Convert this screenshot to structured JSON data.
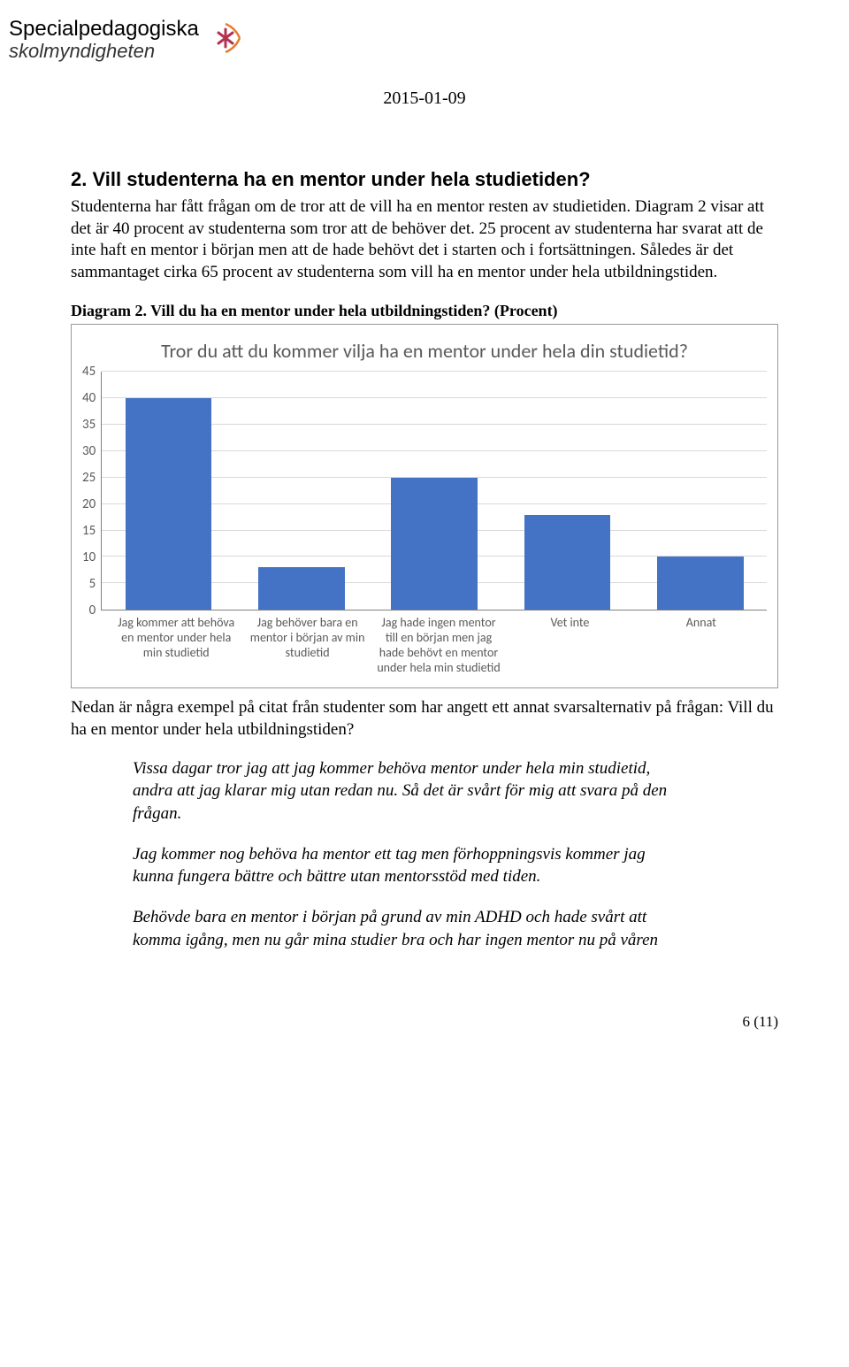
{
  "header": {
    "logo_line1": "Specialpedagogiska",
    "logo_line2": "skolmyndigheten",
    "date": "2015-01-09"
  },
  "section": {
    "number": "2",
    "title": "Vill studenterna ha en mentor under hela studietiden?",
    "body": "Studenterna har fått frågan om de tror att de vill ha en mentor resten av studietiden. Diagram 2 visar att det är 40 procent av studenterna som tror att de behöver det. 25 procent av studenterna har svarat att de inte haft en mentor i början men att de hade behövt det i starten och i fortsättningen. Således är det sammantaget cirka 65 procent av studenterna som vill ha en mentor under hela utbildningstiden."
  },
  "chart": {
    "caption": "Diagram 2. Vill du ha en mentor under hela utbildningstiden? (Procent)",
    "title": "Tror du att du kommer vilja ha en mentor under hela din studietid?",
    "type": "bar",
    "ylim": [
      0,
      45
    ],
    "ytick_step": 5,
    "yticks": [
      45,
      40,
      35,
      30,
      25,
      20,
      15,
      10,
      5,
      0
    ],
    "bar_color": "#4472c4",
    "grid_color": "#d9d9d9",
    "axis_color": "#808080",
    "text_color": "#595959",
    "categories": [
      "Jag kommer att behöva en mentor under hela min studietid",
      "Jag behöver bara en mentor i början av min studietid",
      "Jag hade ingen mentor till en början men jag hade behövt en mentor under hela min studietid",
      "Vet inte",
      "Annat"
    ],
    "values": [
      40,
      8,
      25,
      18,
      10
    ]
  },
  "after_chart": "Nedan är några exempel på citat från studenter som har angett ett annat svarsalternativ på frågan: Vill du ha en mentor under hela utbildningstiden?",
  "quotes": [
    "Vissa dagar tror jag att jag kommer behöva mentor under hela min studietid, andra att jag klarar mig utan redan nu. Så det är svårt för mig att svara på den frågan.",
    "Jag kommer nog behöva ha mentor ett tag men förhoppningsvis kommer jag kunna fungera bättre och bättre utan mentorsstöd med tiden.",
    "Behövde bara en mentor i början på grund av min ADHD och hade svårt att komma igång, men nu går mina studier bra och har ingen mentor nu på våren"
  ],
  "page_number": "6 (11)"
}
